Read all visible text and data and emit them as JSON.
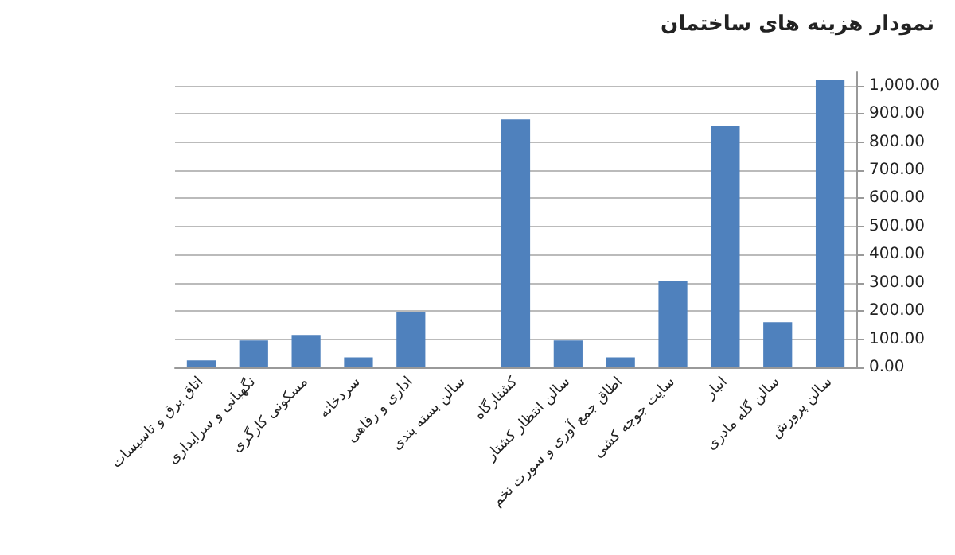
{
  "chart_data": {
    "type": "bar",
    "title": "نمودار هزینه های ساختمان",
    "categories": [
      "اتاق برق و تاسیسات",
      "نگهبانی و سرایداری",
      "مسکونی کارگری",
      "سردخانه",
      "اداری و رفاهی",
      "سالن بسته بندی",
      "کشتارگاه",
      "سالن انتظار کشتار",
      "اطاق جمع آوری و سورت تخم",
      "سایت جوجه کشی",
      "انبار",
      "سالن گله مادری",
      "سالن پرورش"
    ],
    "values": [
      25,
      95,
      115,
      35,
      195,
      2,
      880,
      95,
      35,
      305,
      855,
      160,
      1020
    ],
    "color": "#4f81bd",
    "ylim": [
      0,
      1050
    ],
    "yticks": [
      {
        "value": 0,
        "label": "0.00"
      },
      {
        "value": 100,
        "label": "100.00"
      },
      {
        "value": 200,
        "label": "200.00"
      },
      {
        "value": 300,
        "label": "300.00"
      },
      {
        "value": 400,
        "label": "400.00"
      },
      {
        "value": 500,
        "label": "500.00"
      },
      {
        "value": 600,
        "label": "600.00"
      },
      {
        "value": 700,
        "label": "700.00"
      },
      {
        "value": 800,
        "label": "800.00"
      },
      {
        "value": 900,
        "label": "900.00"
      },
      {
        "value": 1000,
        "label": "1,000.00"
      }
    ],
    "grid": "y"
  }
}
